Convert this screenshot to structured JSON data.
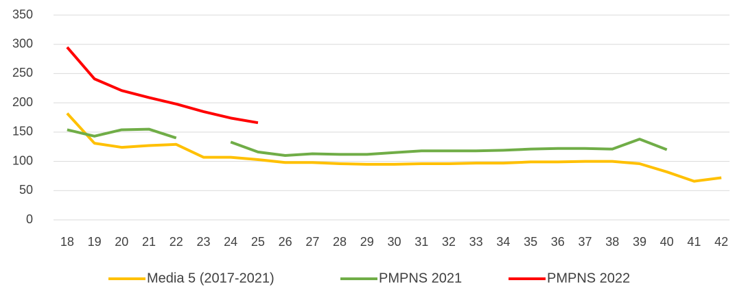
{
  "chart_data": {
    "type": "line",
    "categories": [
      "18",
      "19",
      "20",
      "21",
      "22",
      "23",
      "24",
      "25",
      "26",
      "27",
      "28",
      "29",
      "30",
      "31",
      "32",
      "33",
      "34",
      "35",
      "36",
      "37",
      "38",
      "39",
      "40",
      "41",
      "42"
    ],
    "series": [
      {
        "name": "Media 5 (2017-2021)",
        "color": "#ffc000",
        "values": [
          182,
          131,
          124,
          127,
          129,
          107,
          107,
          103,
          98,
          98,
          96,
          95,
          95,
          96,
          96,
          97,
          97,
          99,
          99,
          100,
          100,
          96,
          82,
          66,
          72
        ]
      },
      {
        "name": "PMPNS 2021",
        "color": "#70ad47",
        "values": [
          154,
          143,
          154,
          155,
          140,
          null,
          133,
          116,
          110,
          113,
          112,
          112,
          115,
          118,
          118,
          118,
          119,
          121,
          122,
          122,
          121,
          138,
          120,
          null,
          null
        ]
      },
      {
        "name": "PMPNS 2022",
        "color": "#ff0000",
        "values": [
          295,
          241,
          221,
          209,
          198,
          185,
          174,
          166,
          null,
          null,
          null,
          null,
          null,
          null,
          null,
          null,
          null,
          null,
          null,
          null,
          null,
          null,
          null,
          null,
          null
        ]
      }
    ],
    "ylim": [
      0,
      350
    ],
    "yticks": [
      0,
      50,
      100,
      150,
      200,
      250,
      300,
      350
    ],
    "grid": true,
    "legend": "bottom"
  }
}
